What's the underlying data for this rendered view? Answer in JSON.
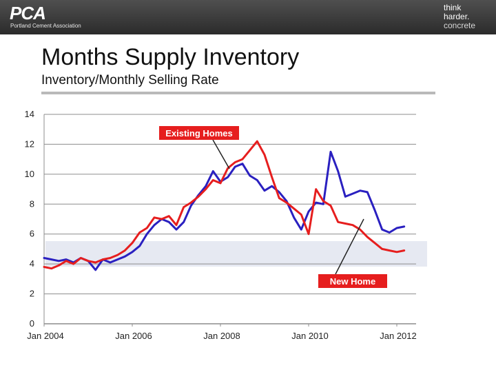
{
  "header": {
    "logo_left": "PCA",
    "logo_left_sub": "Portland Cement Association",
    "logo_right_line1": "think",
    "logo_right_line2": "harder.",
    "logo_right_line3": "concrete"
  },
  "title": "Months Supply Inventory",
  "subtitle": "Inventory/Monthly Selling Rate",
  "colors": {
    "existing": "#2a20c0",
    "new": "#e61e1e",
    "grid": "#8c8c8c",
    "band": "#e6e9f2"
  },
  "chart_data": {
    "type": "line",
    "title": "Months Supply Inventory",
    "subtitle": "Inventory/Monthly Selling Rate",
    "xlabel": "",
    "ylabel": "",
    "ylim": [
      0,
      14
    ],
    "yticks": [
      0,
      2,
      4,
      6,
      8,
      10,
      12,
      14
    ],
    "xticks": [
      "Jan 2004",
      "Jan 2006",
      "Jan 2008",
      "Jan 2010",
      "Jan 2012"
    ],
    "grid": true,
    "annotations": [
      {
        "text": "Existing Homes",
        "target": "Existing Homes",
        "date": "2008-06"
      },
      {
        "text": "New Home",
        "target": "New Home",
        "date": "2011-04"
      }
    ],
    "series": [
      {
        "name": "Existing Homes",
        "x": [
          "2004-01",
          "2004-03",
          "2004-05",
          "2004-07",
          "2004-09",
          "2004-11",
          "2005-01",
          "2005-03",
          "2005-05",
          "2005-07",
          "2005-09",
          "2005-11",
          "2006-01",
          "2006-03",
          "2006-05",
          "2006-07",
          "2006-09",
          "2006-11",
          "2007-01",
          "2007-03",
          "2007-05",
          "2007-07",
          "2007-09",
          "2007-11",
          "2008-01",
          "2008-03",
          "2008-05",
          "2008-07",
          "2008-09",
          "2008-11",
          "2009-01",
          "2009-03",
          "2009-05",
          "2009-07",
          "2009-09",
          "2009-11",
          "2010-01",
          "2010-03",
          "2010-05",
          "2010-07",
          "2010-09",
          "2010-11",
          "2011-01",
          "2011-03",
          "2011-05",
          "2011-07",
          "2011-09",
          "2011-11",
          "2012-01",
          "2012-03"
        ],
        "values": [
          4.4,
          4.3,
          4.2,
          4.3,
          4.1,
          4.4,
          4.2,
          3.6,
          4.3,
          4.1,
          4.3,
          4.5,
          4.8,
          5.2,
          6.0,
          6.6,
          7.0,
          6.8,
          6.3,
          6.8,
          7.9,
          8.6,
          9.2,
          10.2,
          9.5,
          9.8,
          10.5,
          10.7,
          9.9,
          9.6,
          8.9,
          9.2,
          8.8,
          8.2,
          7.1,
          6.3,
          7.5,
          8.1,
          8.0,
          11.5,
          10.2,
          8.5,
          8.7,
          8.9,
          8.8,
          7.6,
          6.3,
          6.1,
          6.4,
          6.5
        ]
      },
      {
        "name": "New Home",
        "x": [
          "2004-01",
          "2004-03",
          "2004-05",
          "2004-07",
          "2004-09",
          "2004-11",
          "2005-01",
          "2005-03",
          "2005-05",
          "2005-07",
          "2005-09",
          "2005-11",
          "2006-01",
          "2006-03",
          "2006-05",
          "2006-07",
          "2006-09",
          "2006-11",
          "2007-01",
          "2007-03",
          "2007-05",
          "2007-07",
          "2007-09",
          "2007-11",
          "2008-01",
          "2008-03",
          "2008-05",
          "2008-07",
          "2008-09",
          "2008-11",
          "2009-01",
          "2009-03",
          "2009-05",
          "2009-07",
          "2009-09",
          "2009-11",
          "2010-01",
          "2010-03",
          "2010-05",
          "2010-07",
          "2010-09",
          "2010-11",
          "2011-01",
          "2011-03",
          "2011-05",
          "2011-07",
          "2011-09",
          "2011-11",
          "2012-01",
          "2012-03"
        ],
        "values": [
          3.8,
          3.7,
          3.9,
          4.2,
          4.0,
          4.4,
          4.2,
          4.1,
          4.3,
          4.4,
          4.6,
          4.9,
          5.4,
          6.1,
          6.4,
          7.1,
          7.0,
          7.2,
          6.6,
          7.8,
          8.1,
          8.5,
          9.0,
          9.6,
          9.4,
          10.4,
          10.8,
          11.0,
          11.6,
          12.2,
          11.3,
          9.8,
          8.4,
          8.1,
          7.7,
          7.3,
          6.0,
          9.0,
          8.2,
          7.9,
          6.8,
          6.7,
          6.6,
          6.3,
          5.8,
          5.4,
          5.0,
          4.9,
          4.8,
          4.9
        ]
      }
    ]
  }
}
